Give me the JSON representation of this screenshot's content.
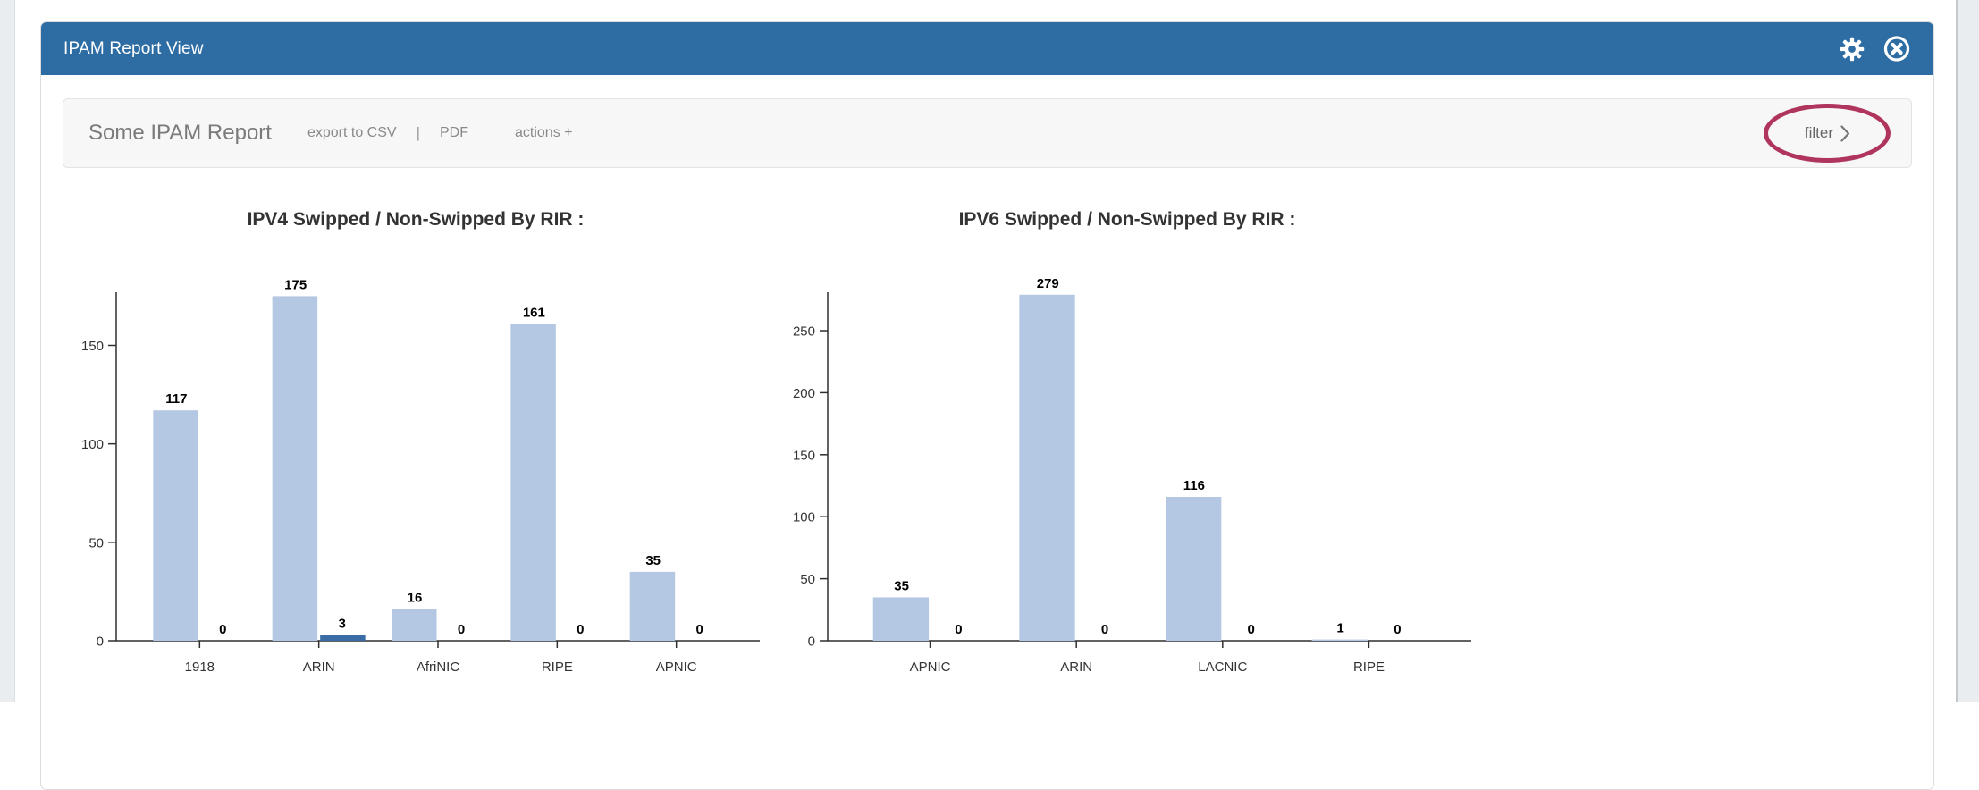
{
  "panel": {
    "title": "IPAM Report View",
    "icons": [
      {
        "name": "gear-icon",
        "glyph": "gear"
      },
      {
        "name": "close-icon",
        "glyph": "circle-x"
      }
    ]
  },
  "toolbar": {
    "report_title": "Some IPAM Report",
    "export_csv_label": "export to CSV",
    "separator": "|",
    "pdf_label": "PDF",
    "actions_label": "actions +",
    "filter_label": "filter"
  },
  "colors": {
    "header_blue": "#2e6da4",
    "bar_light": "#b4c7e3",
    "bar_dark": "#3a6da5",
    "annotation_red": "#b0355c"
  },
  "chart_data": [
    {
      "type": "bar",
      "title": "IPV4 Swipped / Non-Swipped By RIR :",
      "categories": [
        "1918",
        "ARIN",
        "AfriNIC",
        "RIPE",
        "APNIC"
      ],
      "series": [
        {
          "name": "Swipped",
          "color": "#b4c7e3",
          "values": [
            117,
            175,
            16,
            161,
            35
          ]
        },
        {
          "name": "Non-Swipped",
          "color": "#3a6da5",
          "values": [
            0,
            3,
            0,
            0,
            0
          ]
        }
      ],
      "xlabel": "",
      "ylabel": "",
      "ylim": [
        0,
        177
      ],
      "yticks": [
        0,
        50,
        100,
        150
      ],
      "grid": false,
      "legend": "none",
      "value_labels": true
    },
    {
      "type": "bar",
      "title": "IPV6 Swipped / Non-Swipped By RIR :",
      "categories": [
        "APNIC",
        "ARIN",
        "LACNIC",
        "RIPE"
      ],
      "series": [
        {
          "name": "Swipped",
          "color": "#b4c7e3",
          "values": [
            35,
            279,
            116,
            1
          ]
        },
        {
          "name": "Non-Swipped",
          "color": "#3a6da5",
          "values": [
            0,
            0,
            0,
            0
          ]
        }
      ],
      "xlabel": "",
      "ylabel": "",
      "ylim": [
        0,
        281
      ],
      "yticks": [
        0,
        50,
        100,
        150,
        200,
        250
      ],
      "grid": false,
      "legend": "none",
      "value_labels": true
    }
  ]
}
